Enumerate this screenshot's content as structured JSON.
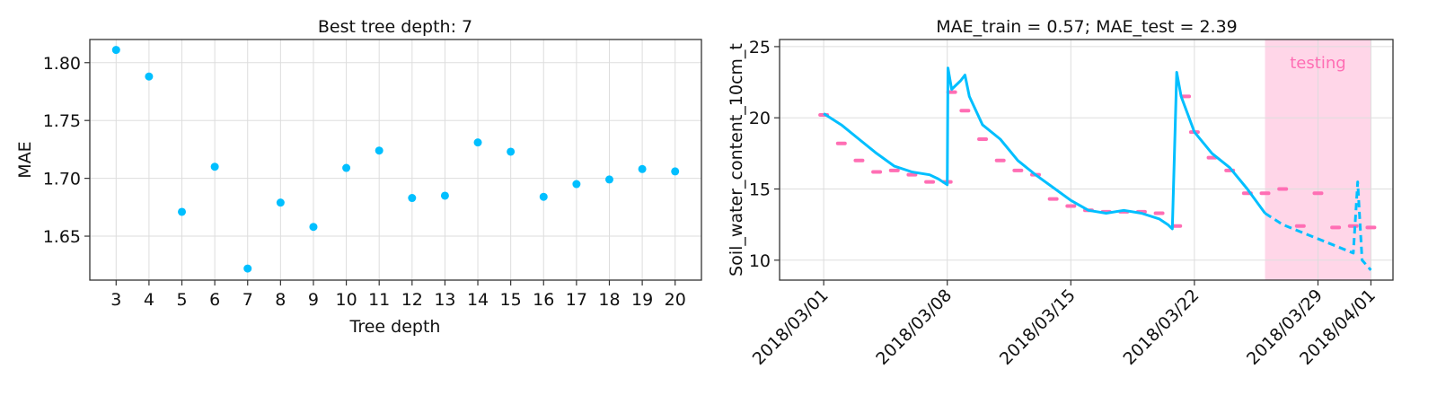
{
  "chart_data": [
    {
      "type": "scatter",
      "title": "Best tree depth: 7",
      "xlabel": "Tree depth",
      "ylabel": "MAE",
      "x": [
        3,
        4,
        5,
        6,
        7,
        8,
        9,
        10,
        11,
        12,
        13,
        14,
        15,
        16,
        17,
        18,
        19,
        20
      ],
      "y": [
        1.811,
        1.788,
        1.671,
        1.71,
        1.622,
        1.679,
        1.658,
        1.709,
        1.724,
        1.683,
        1.685,
        1.731,
        1.723,
        1.684,
        1.695,
        1.699,
        1.708,
        1.706
      ],
      "xticks": [
        3,
        4,
        5,
        6,
        7,
        8,
        9,
        10,
        11,
        12,
        13,
        14,
        15,
        16,
        17,
        18,
        19,
        20
      ],
      "yticks": [
        "1.65",
        "1.70",
        "1.75",
        "1.80"
      ],
      "ylim": [
        1.612,
        1.82
      ],
      "xlim": [
        2.2,
        20.8
      ],
      "grid": true,
      "color": "#00bfff"
    },
    {
      "type": "line",
      "title": "MAE_train = 0.57; MAE_test = 2.39",
      "xlabel": "",
      "ylabel": "Soil_water_content_10cm_t",
      "xticks": [
        "2018/03/01",
        "2018/03/08",
        "2018/03/15",
        "2018/03/22",
        "2018/03/29",
        "2018/04/01"
      ],
      "yticks": [
        10,
        15,
        20,
        25
      ],
      "ylim": [
        8.6,
        25.5
      ],
      "grid": true,
      "annotation": "testing",
      "testing_region": [
        "2018/03/26",
        "2018/04/01"
      ],
      "colors": {
        "predicted": "#00bfff",
        "observed": "#ff6eb4",
        "testing_band": "#ffd6e8"
      },
      "predicted": {
        "x": [
          "2018/03/01",
          "2018/03/02",
          "2018/03/03",
          "2018/03/04",
          "2018/03/05",
          "2018/03/06",
          "2018/03/07",
          "2018/03/07 12:00",
          "2018/03/08",
          "2018/03/08 01:00",
          "2018/03/08 06:00",
          "2018/03/08 18:00",
          "2018/03/09",
          "2018/03/09 06:00",
          "2018/03/10",
          "2018/03/11",
          "2018/03/12",
          "2018/03/13",
          "2018/03/14",
          "2018/03/15",
          "2018/03/16",
          "2018/03/17",
          "2018/03/18",
          "2018/03/19",
          "2018/03/20",
          "2018/03/20 12:00",
          "2018/03/20 18:00",
          "2018/03/21",
          "2018/03/21 06:00",
          "2018/03/22",
          "2018/03/23",
          "2018/03/24",
          "2018/03/25",
          "2018/03/26"
        ],
        "y": [
          20.3,
          19.5,
          18.5,
          17.5,
          16.6,
          16.2,
          16.0,
          15.7,
          15.3,
          23.5,
          22.0,
          22.6,
          23.0,
          21.5,
          19.5,
          18.5,
          17.0,
          16.0,
          15.1,
          14.2,
          13.5,
          13.3,
          13.5,
          13.3,
          12.9,
          12.5,
          12.2,
          23.2,
          21.5,
          19.0,
          17.5,
          16.5,
          15.0,
          13.3
        ]
      },
      "predicted_test": {
        "x": [
          "2018/03/26",
          "2018/03/27",
          "2018/03/28",
          "2018/03/29",
          "2018/03/30",
          "2018/03/31",
          "2018/03/31 06:00",
          "2018/03/31 12:00",
          "2018/04/01"
        ],
        "y": [
          13.3,
          12.5,
          12.0,
          11.5,
          11.0,
          10.5,
          15.5,
          10.0,
          9.3
        ]
      },
      "observed": {
        "x": [
          "2018/03/01",
          "2018/03/02",
          "2018/03/03",
          "2018/03/04",
          "2018/03/05",
          "2018/03/06",
          "2018/03/07",
          "2018/03/08",
          "2018/03/08 06:00",
          "2018/03/09",
          "2018/03/10",
          "2018/03/11",
          "2018/03/12",
          "2018/03/13",
          "2018/03/14",
          "2018/03/15",
          "2018/03/16",
          "2018/03/17",
          "2018/03/18",
          "2018/03/19",
          "2018/03/20",
          "2018/03/21",
          "2018/03/21 12:00",
          "2018/03/22",
          "2018/03/23",
          "2018/03/24",
          "2018/03/25",
          "2018/03/26",
          "2018/03/27",
          "2018/03/28",
          "2018/03/29",
          "2018/03/30",
          "2018/03/31",
          "2018/04/01"
        ],
        "y": [
          20.2,
          18.2,
          17.0,
          16.2,
          16.3,
          16.0,
          15.5,
          15.5,
          21.8,
          20.5,
          18.5,
          17.0,
          16.3,
          16.0,
          14.3,
          13.8,
          13.5,
          13.4,
          13.4,
          13.4,
          13.3,
          12.4,
          21.5,
          19.0,
          17.2,
          16.3,
          14.7,
          14.7,
          15.0,
          12.4,
          14.7,
          12.3,
          12.4,
          12.3
        ]
      }
    }
  ]
}
